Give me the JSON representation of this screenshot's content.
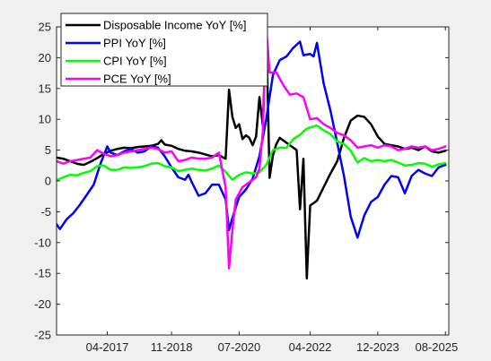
{
  "chart_data": {
    "type": "line",
    "title": "",
    "xlabel": "",
    "ylabel": "",
    "ylim": [
      -25,
      25
    ],
    "yticks": [
      -25,
      -20,
      -15,
      -10,
      -5,
      0,
      5,
      10,
      15,
      20,
      25
    ],
    "xlim": [
      "2016-01",
      "2025-09"
    ],
    "xticks": [
      {
        "label": "04-2017",
        "date": "2017-04"
      },
      {
        "label": "11-2018",
        "date": "2018-11"
      },
      {
        "label": "07-2020",
        "date": "2020-07"
      },
      {
        "label": "04-2022",
        "date": "2022-04"
      },
      {
        "label": "12-2023",
        "date": "2023-12"
      },
      {
        "label": "08-2025",
        "date": "2025-08"
      }
    ],
    "grid": false,
    "legend_position": "top-left",
    "series": [
      {
        "name": "Disposable Income YoY [%]",
        "color": "#000000",
        "points": [
          [
            "2016-01",
            3.8
          ],
          [
            "2016-03",
            3.6
          ],
          [
            "2016-05",
            3.2
          ],
          [
            "2016-07",
            2.8
          ],
          [
            "2016-09",
            2.6
          ],
          [
            "2016-11",
            3.1
          ],
          [
            "2017-01",
            3.7
          ],
          [
            "2017-03",
            4.4
          ],
          [
            "2017-05",
            4.9
          ],
          [
            "2017-07",
            5.2
          ],
          [
            "2017-09",
            5.4
          ],
          [
            "2017-11",
            5.3
          ],
          [
            "2018-01",
            5.5
          ],
          [
            "2018-03",
            5.6
          ],
          [
            "2018-05",
            5.7
          ],
          [
            "2018-07",
            6.0
          ],
          [
            "2018-08",
            6.6
          ],
          [
            "2018-09",
            5.9
          ],
          [
            "2018-11",
            5.7
          ],
          [
            "2019-01",
            5.2
          ],
          [
            "2019-03",
            4.9
          ],
          [
            "2019-05",
            4.8
          ],
          [
            "2019-07",
            4.6
          ],
          [
            "2019-09",
            4.3
          ],
          [
            "2019-11",
            4.0
          ],
          [
            "2020-01",
            4.2
          ],
          [
            "2020-03",
            3.6
          ],
          [
            "2020-04",
            14.8
          ],
          [
            "2020-05",
            10.4
          ],
          [
            "2020-06",
            8.6
          ],
          [
            "2020-07",
            9.2
          ],
          [
            "2020-08",
            6.8
          ],
          [
            "2020-09",
            7.4
          ],
          [
            "2020-10",
            7.0
          ],
          [
            "2020-11",
            5.8
          ],
          [
            "2020-12",
            7.2
          ],
          [
            "2021-01",
            13.6
          ],
          [
            "2021-02",
            9.0
          ],
          [
            "2021-03",
            25.0
          ],
          [
            "2021-04",
            0.5
          ],
          [
            "2021-05",
            4.2
          ],
          [
            "2021-06",
            6.0
          ],
          [
            "2021-07",
            7.0
          ],
          [
            "2021-09",
            6.2
          ],
          [
            "2021-11",
            5.4
          ],
          [
            "2021-12",
            5.0
          ],
          [
            "2022-01",
            -4.6
          ],
          [
            "2022-02",
            3.6
          ],
          [
            "2022-03",
            -15.8
          ],
          [
            "2022-04",
            -4.0
          ],
          [
            "2022-06",
            -3.2
          ],
          [
            "2022-08",
            -1.0
          ],
          [
            "2022-10",
            1.2
          ],
          [
            "2022-12",
            3.2
          ],
          [
            "2023-02",
            7.0
          ],
          [
            "2023-04",
            9.8
          ],
          [
            "2023-06",
            10.6
          ],
          [
            "2023-08",
            10.4
          ],
          [
            "2023-10",
            9.2
          ],
          [
            "2023-12",
            7.2
          ],
          [
            "2024-02",
            6.0
          ],
          [
            "2024-04",
            5.8
          ],
          [
            "2024-06",
            5.6
          ],
          [
            "2024-08",
            5.2
          ],
          [
            "2024-10",
            5.4
          ],
          [
            "2024-12",
            5.0
          ],
          [
            "2025-02",
            5.6
          ],
          [
            "2025-04",
            4.8
          ],
          [
            "2025-06",
            4.6
          ],
          [
            "2025-08",
            4.9
          ]
        ]
      },
      {
        "name": "PPI YoY [%]",
        "color": "#0000ff",
        "points": [
          [
            "2016-01",
            -7.0
          ],
          [
            "2016-02",
            -7.8
          ],
          [
            "2016-04",
            -6.2
          ],
          [
            "2016-06",
            -5.2
          ],
          [
            "2016-08",
            -3.8
          ],
          [
            "2016-10",
            -2.2
          ],
          [
            "2016-12",
            -0.6
          ],
          [
            "2017-02",
            2.8
          ],
          [
            "2017-04",
            5.6
          ],
          [
            "2017-05",
            4.6
          ],
          [
            "2017-07",
            4.2
          ],
          [
            "2017-09",
            4.8
          ],
          [
            "2017-11",
            5.2
          ],
          [
            "2018-01",
            4.6
          ],
          [
            "2018-03",
            4.8
          ],
          [
            "2018-05",
            5.6
          ],
          [
            "2018-07",
            5.4
          ],
          [
            "2018-09",
            4.0
          ],
          [
            "2018-11",
            2.2
          ],
          [
            "2019-01",
            0.6
          ],
          [
            "2019-03",
            0.2
          ],
          [
            "2019-04",
            1.0
          ],
          [
            "2019-05",
            -0.2
          ],
          [
            "2019-07",
            -2.4
          ],
          [
            "2019-09",
            -2.0
          ],
          [
            "2019-11",
            -0.6
          ],
          [
            "2020-01",
            -0.6
          ],
          [
            "2020-03",
            -3.0
          ],
          [
            "2020-04",
            -8.0
          ],
          [
            "2020-05",
            -6.0
          ],
          [
            "2020-07",
            -2.6
          ],
          [
            "2020-09",
            -1.4
          ],
          [
            "2020-11",
            0.4
          ],
          [
            "2021-01",
            4.0
          ],
          [
            "2021-03",
            10.0
          ],
          [
            "2021-05",
            17.2
          ],
          [
            "2021-07",
            19.6
          ],
          [
            "2021-09",
            20.2
          ],
          [
            "2021-11",
            21.6
          ],
          [
            "2022-01",
            22.6
          ],
          [
            "2022-02",
            20.4
          ],
          [
            "2022-04",
            20.6
          ],
          [
            "2022-05",
            20.2
          ],
          [
            "2022-06",
            22.4
          ],
          [
            "2022-08",
            15.8
          ],
          [
            "2022-10",
            11.4
          ],
          [
            "2022-12",
            6.2
          ],
          [
            "2023-02",
            0.8
          ],
          [
            "2023-04",
            -5.8
          ],
          [
            "2023-06",
            -9.2
          ],
          [
            "2023-08",
            -5.6
          ],
          [
            "2023-10",
            -3.4
          ],
          [
            "2023-12",
            -2.6
          ],
          [
            "2024-02",
            -0.6
          ],
          [
            "2024-04",
            0.8
          ],
          [
            "2024-06",
            0.6
          ],
          [
            "2024-08",
            -2.0
          ],
          [
            "2024-10",
            0.8
          ],
          [
            "2024-12",
            1.8
          ],
          [
            "2025-02",
            1.2
          ],
          [
            "2025-04",
            0.8
          ],
          [
            "2025-06",
            2.2
          ],
          [
            "2025-08",
            2.6
          ]
        ]
      },
      {
        "name": "CPI YoY [%]",
        "color": "#00ff00",
        "points": [
          [
            "2016-01",
            0.1
          ],
          [
            "2016-03",
            0.6
          ],
          [
            "2016-05",
            1.0
          ],
          [
            "2016-07",
            0.9
          ],
          [
            "2016-09",
            1.3
          ],
          [
            "2016-11",
            1.6
          ],
          [
            "2017-01",
            2.4
          ],
          [
            "2017-03",
            2.5
          ],
          [
            "2017-05",
            1.8
          ],
          [
            "2017-07",
            1.8
          ],
          [
            "2017-09",
            2.2
          ],
          [
            "2017-11",
            2.1
          ],
          [
            "2018-01",
            2.2
          ],
          [
            "2018-03",
            2.4
          ],
          [
            "2018-05",
            2.8
          ],
          [
            "2018-07",
            2.9
          ],
          [
            "2018-09",
            2.4
          ],
          [
            "2018-11",
            2.2
          ],
          [
            "2019-01",
            1.6
          ],
          [
            "2019-03",
            1.8
          ],
          [
            "2019-05",
            2.0
          ],
          [
            "2019-07",
            1.8
          ],
          [
            "2019-09",
            1.7
          ],
          [
            "2019-11",
            2.0
          ],
          [
            "2020-01",
            2.5
          ],
          [
            "2020-03",
            1.5
          ],
          [
            "2020-05",
            0.2
          ],
          [
            "2020-07",
            1.0
          ],
          [
            "2020-09",
            1.4
          ],
          [
            "2020-11",
            1.2
          ],
          [
            "2021-01",
            1.4
          ],
          [
            "2021-03",
            2.6
          ],
          [
            "2021-05",
            5.0
          ],
          [
            "2021-07",
            5.4
          ],
          [
            "2021-09",
            5.4
          ],
          [
            "2021-11",
            6.8
          ],
          [
            "2022-01",
            7.5
          ],
          [
            "2022-03",
            8.5
          ],
          [
            "2022-06",
            9.0
          ],
          [
            "2022-08",
            8.2
          ],
          [
            "2022-10",
            7.6
          ],
          [
            "2022-12",
            6.4
          ],
          [
            "2023-02",
            6.0
          ],
          [
            "2023-04",
            4.9
          ],
          [
            "2023-06",
            3.0
          ],
          [
            "2023-08",
            3.7
          ],
          [
            "2023-10",
            3.2
          ],
          [
            "2023-12",
            3.4
          ],
          [
            "2024-02",
            3.2
          ],
          [
            "2024-04",
            3.4
          ],
          [
            "2024-06",
            3.0
          ],
          [
            "2024-08",
            2.5
          ],
          [
            "2024-10",
            2.6
          ],
          [
            "2024-12",
            2.9
          ],
          [
            "2025-02",
            2.8
          ],
          [
            "2025-04",
            2.3
          ],
          [
            "2025-06",
            2.7
          ],
          [
            "2025-08",
            2.9
          ]
        ]
      },
      {
        "name": "PCE YoY [%]",
        "color": "#ff00ff",
        "points": [
          [
            "2016-01",
            3.2
          ],
          [
            "2016-03",
            2.8
          ],
          [
            "2016-05",
            3.2
          ],
          [
            "2016-07",
            3.4
          ],
          [
            "2016-09",
            3.6
          ],
          [
            "2016-11",
            3.8
          ],
          [
            "2017-01",
            5.0
          ],
          [
            "2017-03",
            4.4
          ],
          [
            "2017-05",
            4.0
          ],
          [
            "2017-07",
            4.2
          ],
          [
            "2017-09",
            4.6
          ],
          [
            "2017-11",
            4.8
          ],
          [
            "2018-01",
            5.0
          ],
          [
            "2018-03",
            5.2
          ],
          [
            "2018-05",
            5.4
          ],
          [
            "2018-07",
            5.2
          ],
          [
            "2018-09",
            4.6
          ],
          [
            "2018-11",
            4.8
          ],
          [
            "2019-01",
            3.2
          ],
          [
            "2019-03",
            3.4
          ],
          [
            "2019-05",
            3.8
          ],
          [
            "2019-07",
            3.6
          ],
          [
            "2019-09",
            3.6
          ],
          [
            "2019-11",
            3.8
          ],
          [
            "2020-01",
            4.6
          ],
          [
            "2020-03",
            -1.0
          ],
          [
            "2020-04",
            -14.2
          ],
          [
            "2020-05",
            -8.0
          ],
          [
            "2020-06",
            -3.0
          ],
          [
            "2020-08",
            -1.0
          ],
          [
            "2020-10",
            -0.2
          ],
          [
            "2020-12",
            0.6
          ],
          [
            "2021-01",
            2.0
          ],
          [
            "2021-02",
            8.0
          ],
          [
            "2021-03",
            25.0
          ],
          [
            "2021-04",
            17.6
          ],
          [
            "2021-06",
            17.6
          ],
          [
            "2021-08",
            15.6
          ],
          [
            "2021-10",
            14.0
          ],
          [
            "2021-12",
            14.2
          ],
          [
            "2022-02",
            13.6
          ],
          [
            "2022-04",
            10.0
          ],
          [
            "2022-06",
            10.2
          ],
          [
            "2022-08",
            9.2
          ],
          [
            "2022-10",
            8.6
          ],
          [
            "2022-12",
            7.8
          ],
          [
            "2023-02",
            7.4
          ],
          [
            "2023-04",
            6.6
          ],
          [
            "2023-06",
            5.4
          ],
          [
            "2023-08",
            5.6
          ],
          [
            "2023-10",
            5.8
          ],
          [
            "2023-12",
            5.4
          ],
          [
            "2024-02",
            5.8
          ],
          [
            "2024-04",
            5.6
          ],
          [
            "2024-06",
            5.0
          ],
          [
            "2024-08",
            5.2
          ],
          [
            "2024-10",
            5.6
          ],
          [
            "2024-12",
            5.4
          ],
          [
            "2025-02",
            5.6
          ],
          [
            "2025-04",
            5.0
          ],
          [
            "2025-06",
            5.2
          ],
          [
            "2025-08",
            5.6
          ]
        ]
      }
    ]
  }
}
